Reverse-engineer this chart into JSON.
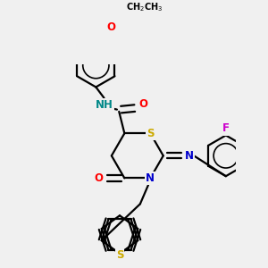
{
  "bg_color": "#f0f0f0",
  "atom_colors": {
    "C": "#000000",
    "N": "#0000cc",
    "O": "#ff0000",
    "S": "#ccaa00",
    "F": "#cc00cc",
    "H": "#008888"
  },
  "bond_color": "#000000",
  "bond_width": 1.6,
  "font_size": 8.5
}
